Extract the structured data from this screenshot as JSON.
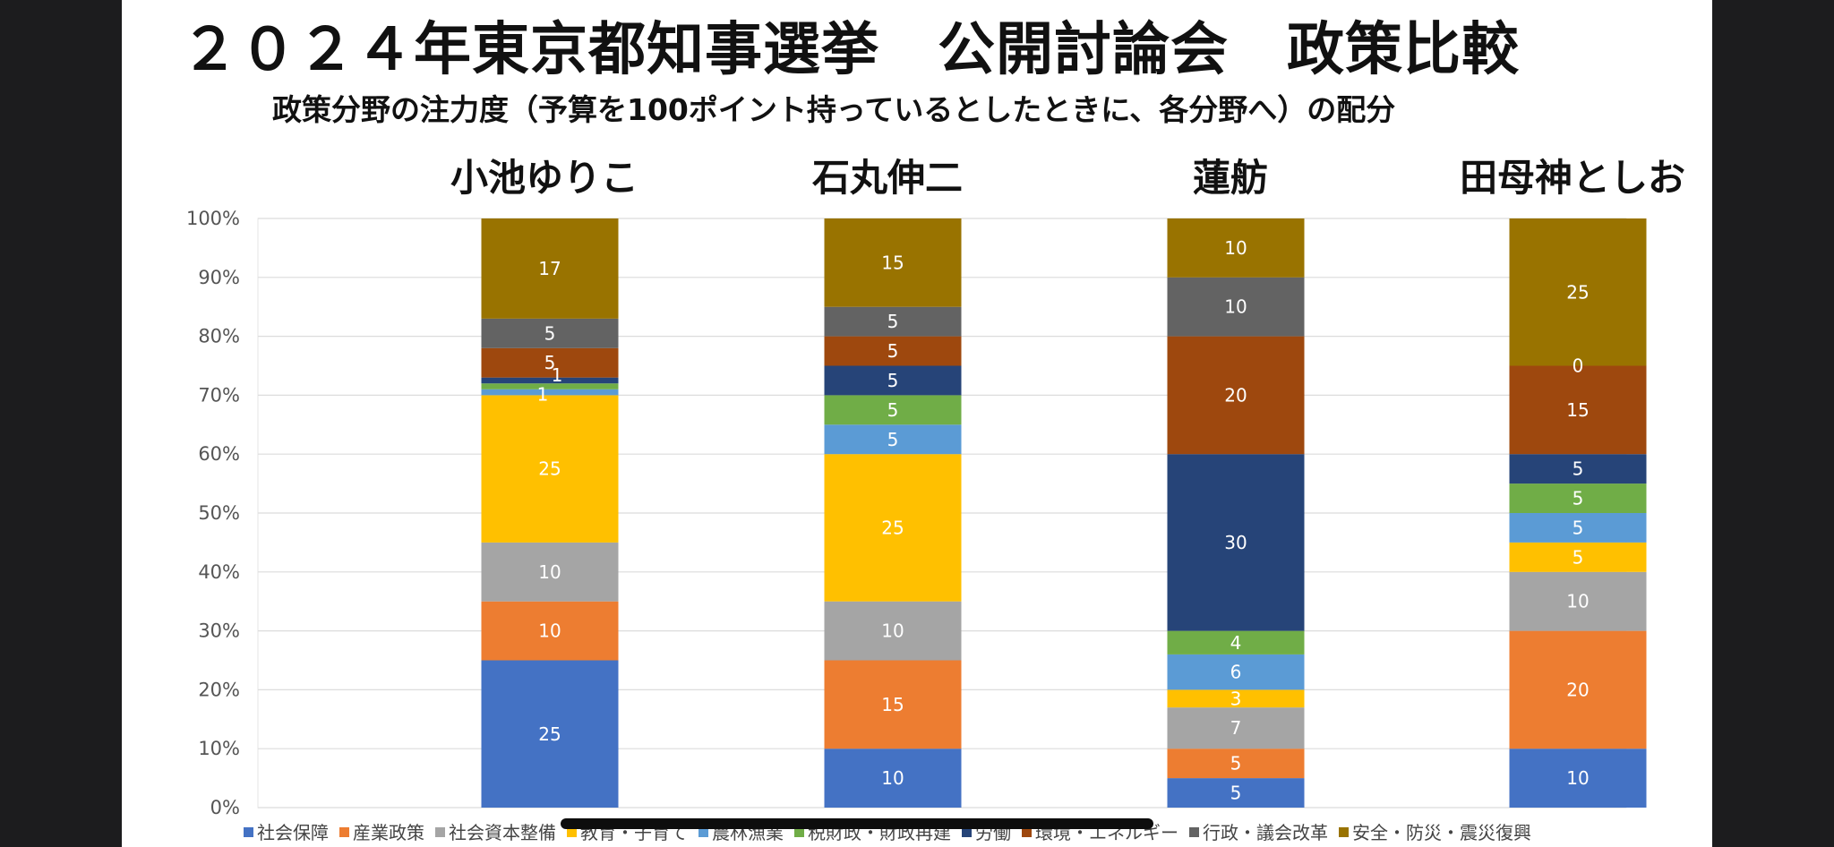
{
  "title": "２０２４年東京都知事選挙　公開討論会　政策比較",
  "subtitle": "政策分野の注力度（予算を100ポイント持っているとしたときに、各分野へ）の配分",
  "chart_data": {
    "type": "bar",
    "stacked": true,
    "percent": true,
    "categories": [
      "小池ゆりこ",
      "石丸伸二",
      "蓮舫",
      "田母神としお"
    ],
    "yticks": [
      "0%",
      "10%",
      "20%",
      "30%",
      "40%",
      "50%",
      "60%",
      "70%",
      "80%",
      "90%",
      "100%"
    ],
    "ylim": [
      0,
      100
    ],
    "legend_position": "bottom",
    "series": [
      {
        "name": "社会保障",
        "color": "#4472C4",
        "values": [
          25,
          10,
          5,
          10
        ]
      },
      {
        "name": "産業政策",
        "color": "#ED7D31",
        "values": [
          10,
          15,
          5,
          20
        ]
      },
      {
        "name": "社会資本整備",
        "color": "#A5A5A5",
        "values": [
          10,
          10,
          7,
          10
        ]
      },
      {
        "name": "教育・子育て",
        "color": "#FFC000",
        "values": [
          25,
          25,
          3,
          5
        ]
      },
      {
        "name": "農林漁業",
        "color": "#5B9BD5",
        "values": [
          1,
          5,
          6,
          5
        ]
      },
      {
        "name": "税財政・財政再建",
        "color": "#70AD47",
        "values": [
          1,
          5,
          4,
          5
        ]
      },
      {
        "name": "労働",
        "color": "#264478",
        "values": [
          1,
          5,
          30,
          5
        ]
      },
      {
        "name": "環境・エネルギー",
        "color": "#9E480E",
        "values": [
          5,
          5,
          20,
          15
        ]
      },
      {
        "name": "行政・議会改革",
        "color": "#636363",
        "values": [
          5,
          5,
          10,
          0
        ]
      },
      {
        "name": "安全・防災・震災復興",
        "color": "#997300",
        "values": [
          17,
          15,
          10,
          25
        ]
      }
    ],
    "value_labels": [
      [
        "25",
        "10",
        "10",
        "25",
        "1",
        "1",
        "",
        "5",
        "5",
        "17"
      ],
      [
        "10",
        "15",
        "10",
        "25",
        "5",
        "5",
        "5",
        "5",
        "5",
        "15"
      ],
      [
        "5",
        "5",
        "7",
        "3",
        "6",
        "4",
        "30",
        "20",
        "10",
        "10"
      ],
      [
        "10",
        "20",
        "10",
        "5",
        "5",
        "5",
        "5",
        "15",
        "0",
        "25"
      ]
    ]
  }
}
